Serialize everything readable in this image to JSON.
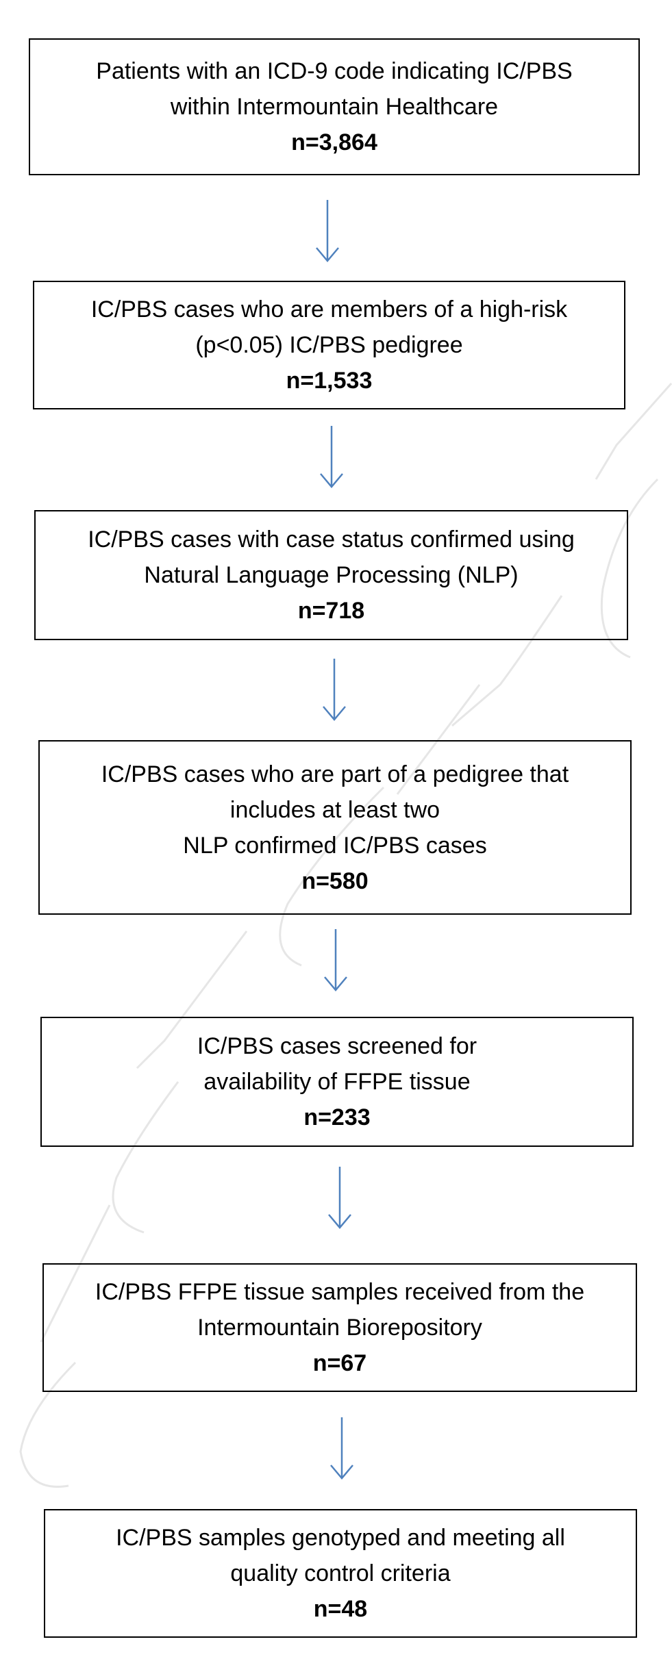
{
  "flowchart": {
    "boxes": [
      {
        "lines": [
          "Patients with an ICD-9 code indicating IC/PBS",
          "within Intermountain Healthcare"
        ],
        "count": "n=3,864"
      },
      {
        "lines": [
          "IC/PBS cases who are members of a high-risk",
          "(p<0.05) IC/PBS pedigree"
        ],
        "count": "n=1,533"
      },
      {
        "lines": [
          "IC/PBS cases with case status confirmed using",
          "Natural Language Processing (NLP)"
        ],
        "count": "n=718"
      },
      {
        "lines": [
          "IC/PBS cases who are part of a pedigree that",
          "includes at least two",
          "NLP confirmed IC/PBS cases"
        ],
        "count": "n=580"
      },
      {
        "lines": [
          "IC/PBS cases screened for",
          "availability of FFPE tissue"
        ],
        "count": "n=233"
      },
      {
        "lines": [
          "IC/PBS FFPE tissue samples received from the",
          "Intermountain Biorepository"
        ],
        "count": "n=67"
      },
      {
        "lines": [
          "IC/PBS samples genotyped and meeting all",
          "quality control criteria"
        ],
        "count": "n=48"
      }
    ],
    "colors": {
      "arrow": "#4f81bd",
      "border": "#000000",
      "watermark": "#e4e4e4"
    }
  }
}
